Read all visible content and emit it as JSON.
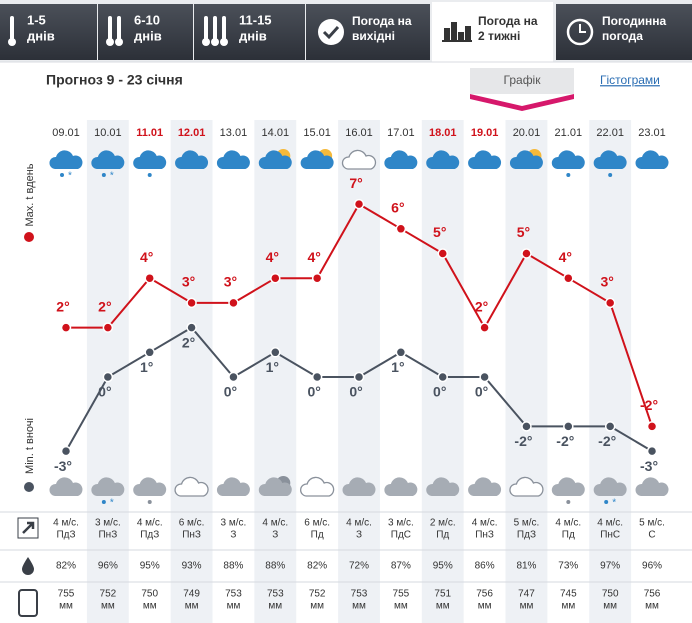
{
  "tabs": [
    [
      "1-5",
      "днів"
    ],
    [
      "6-10",
      "днів"
    ],
    [
      "11-15",
      "днів"
    ],
    [
      "Погода на",
      "вихідні"
    ],
    [
      "Погода на",
      "2 тижні"
    ],
    [
      "Погодинна",
      "погода"
    ]
  ],
  "active_tab": 4,
  "title": "Прогноз 9 - 23 січня",
  "view_buttons": [
    "Графік",
    "Гістограми"
  ],
  "chart": {
    "type": "line",
    "dates": [
      "09.01",
      "10.01",
      "11.01",
      "12.01",
      "13.01",
      "14.01",
      "15.01",
      "16.01",
      "17.01",
      "18.01",
      "19.01",
      "20.01",
      "21.01",
      "22.01",
      "23.01"
    ],
    "weekend": [
      false,
      false,
      true,
      true,
      false,
      false,
      false,
      false,
      false,
      true,
      true,
      false,
      false,
      false,
      false
    ],
    "series": [
      {
        "name": "Max. t вдень",
        "color": "#d0121b",
        "values": [
          2,
          2,
          4,
          3,
          3,
          4,
          4,
          7,
          6,
          5,
          2,
          5,
          4,
          3,
          -2
        ],
        "value_labels": [
          "2°",
          "2°",
          "4°",
          "3°",
          "3°",
          "4°",
          "4°",
          "7°",
          "6°",
          "5°",
          "2°",
          "5°",
          "4°",
          "3°",
          "-2°"
        ]
      },
      {
        "name": "Min. t вночі",
        "color": "#4a5360",
        "values": [
          -3,
          0,
          1,
          2,
          0,
          1,
          0,
          0,
          1,
          0,
          0,
          -2,
          -2,
          -2,
          -3
        ],
        "value_labels": [
          "-3°",
          "0°",
          "1°",
          "2°",
          "0°",
          "1°",
          "0°",
          "0°",
          "1°",
          "0°",
          "0°",
          "-2°",
          "-2°",
          "-2°",
          "-3°"
        ]
      }
    ]
  },
  "table": {
    "wind_speed": [
      "4 м/с.",
      "3 м/с.",
      "4 м/с.",
      "6 м/с.",
      "3 м/с.",
      "4 м/с.",
      "6 м/с.",
      "4 м/с.",
      "3 м/с.",
      "2 м/с.",
      "4 м/с.",
      "5 м/с.",
      "4 м/с.",
      "4 м/с.",
      "5 м/с."
    ],
    "wind_dir": [
      "ПдЗ",
      "ПнЗ",
      "ПдЗ",
      "ПнЗ",
      "З",
      "З",
      "Пд",
      "З",
      "ПдС",
      "Пд",
      "ПнЗ",
      "ПдЗ",
      "Пд",
      "ПнС",
      "С"
    ],
    "humidity": [
      "82%",
      "96%",
      "95%",
      "93%",
      "88%",
      "88%",
      "82%",
      "72%",
      "87%",
      "95%",
      "86%",
      "81%",
      "73%",
      "97%",
      "96%"
    ],
    "pressure": [
      "755",
      "752",
      "750",
      "749",
      "753",
      "753",
      "752",
      "753",
      "755",
      "751",
      "756",
      "747",
      "745",
      "750",
      "756"
    ],
    "pressure_unit": "мм"
  }
}
